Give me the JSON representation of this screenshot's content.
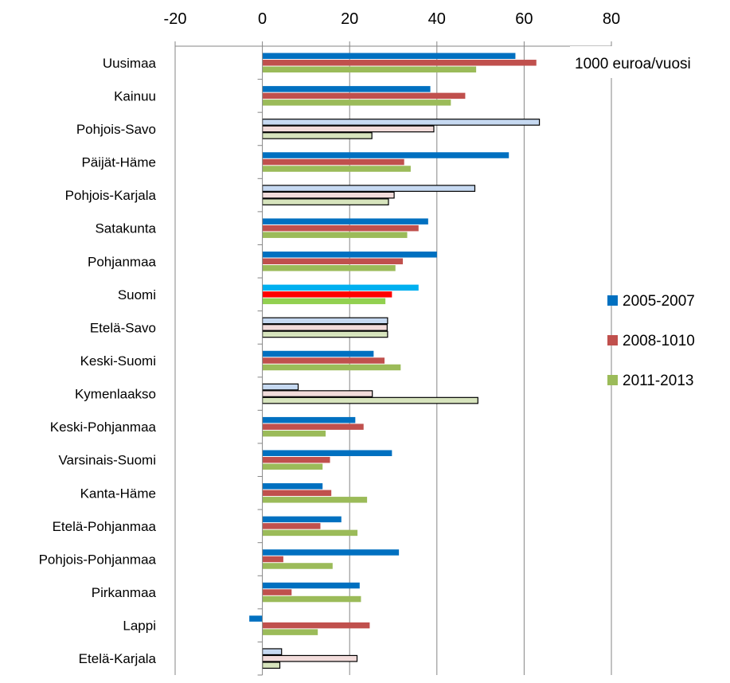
{
  "chart_data": {
    "type": "bar",
    "orientation": "horizontal",
    "unit_label": "1000 euroa/vuosi",
    "xlim": [
      -20,
      80
    ],
    "x_ticks": [
      "-20",
      "0",
      "20",
      "40",
      "60",
      "80"
    ],
    "x_tick_values": [
      -20,
      0,
      20,
      40,
      60,
      80
    ],
    "grid": "vertical major gridlines",
    "legend_position": "right",
    "categories": [
      "Uusimaa",
      "Kainuu",
      "Pohjois-Savo",
      "Päijät-Häme",
      "Pohjois-Karjala",
      "Satakunta",
      "Pohjanmaa",
      "Suomi",
      "Etelä-Savo",
      "Keski-Suomi",
      "Kymenlaakso",
      "Keski-Pohjanmaa",
      "Varsinais-Suomi",
      "Kanta-Häme",
      "Etelä-Pohjanmaa",
      "Pohjois-Pohjanmaa",
      "Pirkanmaa",
      "Lappi",
      "Etelä-Karjala"
    ],
    "series": [
      {
        "name": "2005-2007",
        "color": "#0070C0",
        "values": [
          58,
          38.5,
          63.5,
          56.5,
          48.7,
          38,
          40,
          35.8,
          28.7,
          25.5,
          8.2,
          21.3,
          29.7,
          13.8,
          18.1,
          31.3,
          22.3,
          -3,
          4.4
        ]
      },
      {
        "name": "2008-1010",
        "color": "#C0504D",
        "values": [
          62.8,
          46.5,
          39.3,
          32.5,
          30.2,
          35.8,
          32.2,
          29.7,
          28.6,
          28,
          25.2,
          23.2,
          15.5,
          15.8,
          13.3,
          4.8,
          6.7,
          24.6,
          21.7
        ]
      },
      {
        "name": "2011-2013",
        "color": "#9BBB59",
        "values": [
          49,
          43.2,
          25.1,
          34,
          28.9,
          33.2,
          30.5,
          28.2,
          28.7,
          31.7,
          49.4,
          14.5,
          13.8,
          24,
          21.8,
          16.1,
          22.6,
          12.7,
          4
        ]
      }
    ],
    "highlight_colors": {
      "Suomi": [
        "#00B0F0",
        "#FF0000",
        "#92D050"
      ],
      "outlined": [
        "#C6D9F1",
        "#F2DCDB",
        "#D7E4BD"
      ]
    },
    "outlined_categories": [
      "Pohjois-Savo",
      "Pohjois-Karjala",
      "Etelä-Savo",
      "Kymenlaakso",
      "Etelä-Karjala"
    ]
  }
}
